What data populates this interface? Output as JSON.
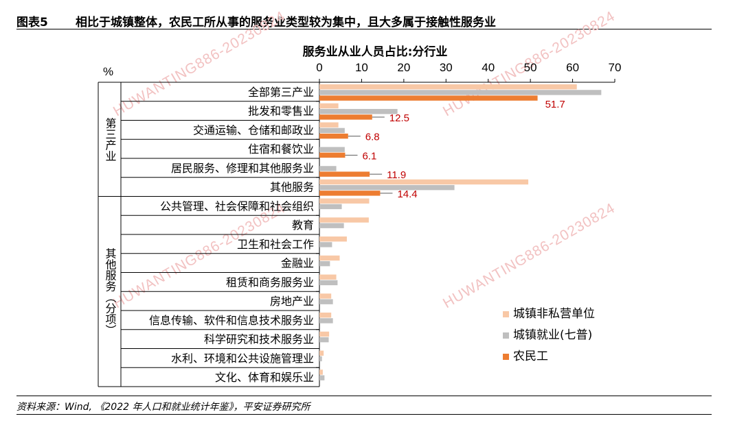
{
  "header": {
    "figure_no": "图表5",
    "title": "相比于城镇整体，农民工所从事的服务业类型较为集中，且大多属于接触性服务业"
  },
  "footer": {
    "source": "资料来源：Wind, 《2022 年人口和就业统计年鉴》，平安证券研究所"
  },
  "watermark": "HUWANTING886-20230824",
  "chart_data": {
    "type": "bar",
    "orientation": "horizontal",
    "title": "服务业从业人员占比:分行业",
    "unit_label": "%",
    "xlim": [
      0,
      70
    ],
    "xticks": [
      0,
      10,
      20,
      30,
      40,
      50,
      60,
      70
    ],
    "categories": [
      "全部第三产业",
      "批发和零售业",
      "交通运输、仓储和邮政业",
      "住宿和餐饮业",
      "居民服务、修理和其他服务业",
      "其他服务",
      "公共管理、社会保障和社会组织",
      "教育",
      "卫生和社会工作",
      "金融业",
      "租赁和商务服务业",
      "房地产业",
      "信息传输、软件和信息技术服务业",
      "科学研究和技术服务业",
      "水利、环境和公共设施管理业",
      "文化、体育和娱乐业"
    ],
    "groups": [
      {
        "label": "第三产业",
        "count": 6
      },
      {
        "label": "其他服务（分项）",
        "count": 10
      }
    ],
    "series": [
      {
        "name": "城镇非私营单位",
        "color": "#f8c8a6",
        "values": [
          61.0,
          4.5,
          4.5,
          0.0,
          0.0,
          49.5,
          11.8,
          11.7,
          6.5,
          4.8,
          4.0,
          2.8,
          2.8,
          2.3,
          1.0,
          0.8
        ]
      },
      {
        "name": "城镇就业(七普)",
        "color": "#bfbfbf",
        "values": [
          66.8,
          18.5,
          6.0,
          6.0,
          4.0,
          32.0,
          5.3,
          5.8,
          3.0,
          2.5,
          4.3,
          3.2,
          3.2,
          2.2,
          0.6,
          1.2
        ]
      },
      {
        "name": "农民工",
        "color": "#ed7d31",
        "values": [
          51.7,
          12.5,
          6.8,
          6.1,
          11.9,
          14.4,
          null,
          null,
          null,
          null,
          null,
          null,
          null,
          null,
          null,
          null
        ]
      }
    ],
    "data_labels": [
      "51.7",
      "12.5",
      "6.8",
      "6.1",
      "11.9",
      "14.4"
    ],
    "label_color": "#c00000",
    "legend_position": "bottom-right"
  }
}
